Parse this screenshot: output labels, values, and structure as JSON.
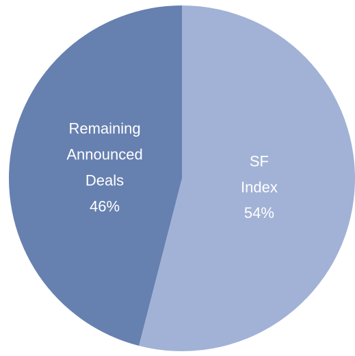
{
  "chart_data": {
    "type": "pie",
    "categories": [
      "SF Index",
      "Remaining Announced Deals"
    ],
    "values": [
      54,
      46
    ],
    "value_labels": [
      "54%",
      "46%"
    ],
    "colors": [
      "#a2b2d6",
      "#6680b0"
    ]
  }
}
